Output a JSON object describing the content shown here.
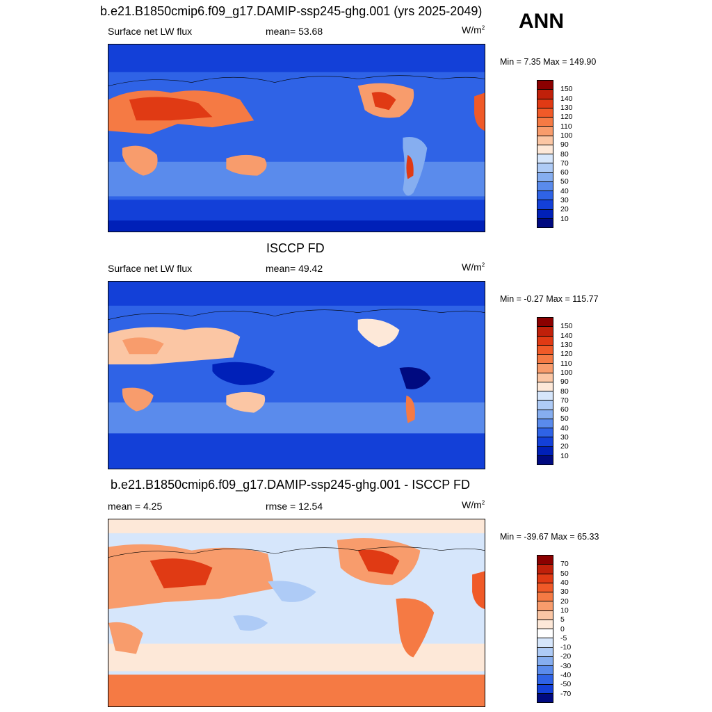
{
  "season": "ANN",
  "panels": [
    {
      "title": "b.e21.B1850cmip6.f09_g17.DAMIP-ssp245-ghg.001 (yrs 2025-2049)",
      "left_label": "Surface net LW flux",
      "center_label": "mean=  53.68",
      "units_base": "W/m",
      "units_exp": "2",
      "minmax": "Min =   7.35 Max = 149.90",
      "colorbar_labels": [
        "150",
        "140",
        "130",
        "120",
        "110",
        "100",
        "90",
        "80",
        "70",
        "60",
        "50",
        "40",
        "30",
        "20",
        "10"
      ],
      "colorbar_colors": [
        "#8b0000",
        "#c0200a",
        "#e03a14",
        "#f05a28",
        "#f57a44",
        "#f89c6c",
        "#fbc6a4",
        "#fde8d8",
        "#d6e6fb",
        "#aecbf6",
        "#86aef0",
        "#5a8bec",
        "#2f63e6",
        "#1340d8",
        "#0020b8",
        "#000a80"
      ]
    },
    {
      "title": "ISCCP FD",
      "left_label": "Surface net LW flux",
      "center_label": "mean=  49.42",
      "units_base": "W/m",
      "units_exp": "2",
      "minmax": "Min =  -0.27 Max = 115.77",
      "colorbar_labels": [
        "150",
        "140",
        "130",
        "120",
        "110",
        "100",
        "90",
        "80",
        "70",
        "60",
        "50",
        "40",
        "30",
        "20",
        "10"
      ],
      "colorbar_colors": [
        "#8b0000",
        "#c0200a",
        "#e03a14",
        "#f05a28",
        "#f57a44",
        "#f89c6c",
        "#fbc6a4",
        "#fde8d8",
        "#d6e6fb",
        "#aecbf6",
        "#86aef0",
        "#5a8bec",
        "#2f63e6",
        "#1340d8",
        "#0020b8",
        "#000a80"
      ]
    },
    {
      "title": "b.e21.B1850cmip6.f09_g17.DAMIP-ssp245-ghg.001 - ISCCP FD",
      "left_label": "mean =   4.25",
      "center_label": "rmse =  12.54",
      "units_base": "W/m",
      "units_exp": "2",
      "minmax": "Min = -39.67 Max =  65.33",
      "colorbar_labels": [
        "70",
        "50",
        "40",
        "30",
        "20",
        "10",
        "5",
        "0",
        "-5",
        "-10",
        "-20",
        "-30",
        "-40",
        "-50",
        "-70"
      ],
      "colorbar_colors": [
        "#8b0000",
        "#c0200a",
        "#e03a14",
        "#f05a28",
        "#f57a44",
        "#f89c6c",
        "#fbc6a4",
        "#fde8d8",
        "#ffffff",
        "#d6e6fb",
        "#aecbf6",
        "#86aef0",
        "#5a8bec",
        "#2f63e6",
        "#1340d8",
        "#000a80"
      ]
    }
  ]
}
